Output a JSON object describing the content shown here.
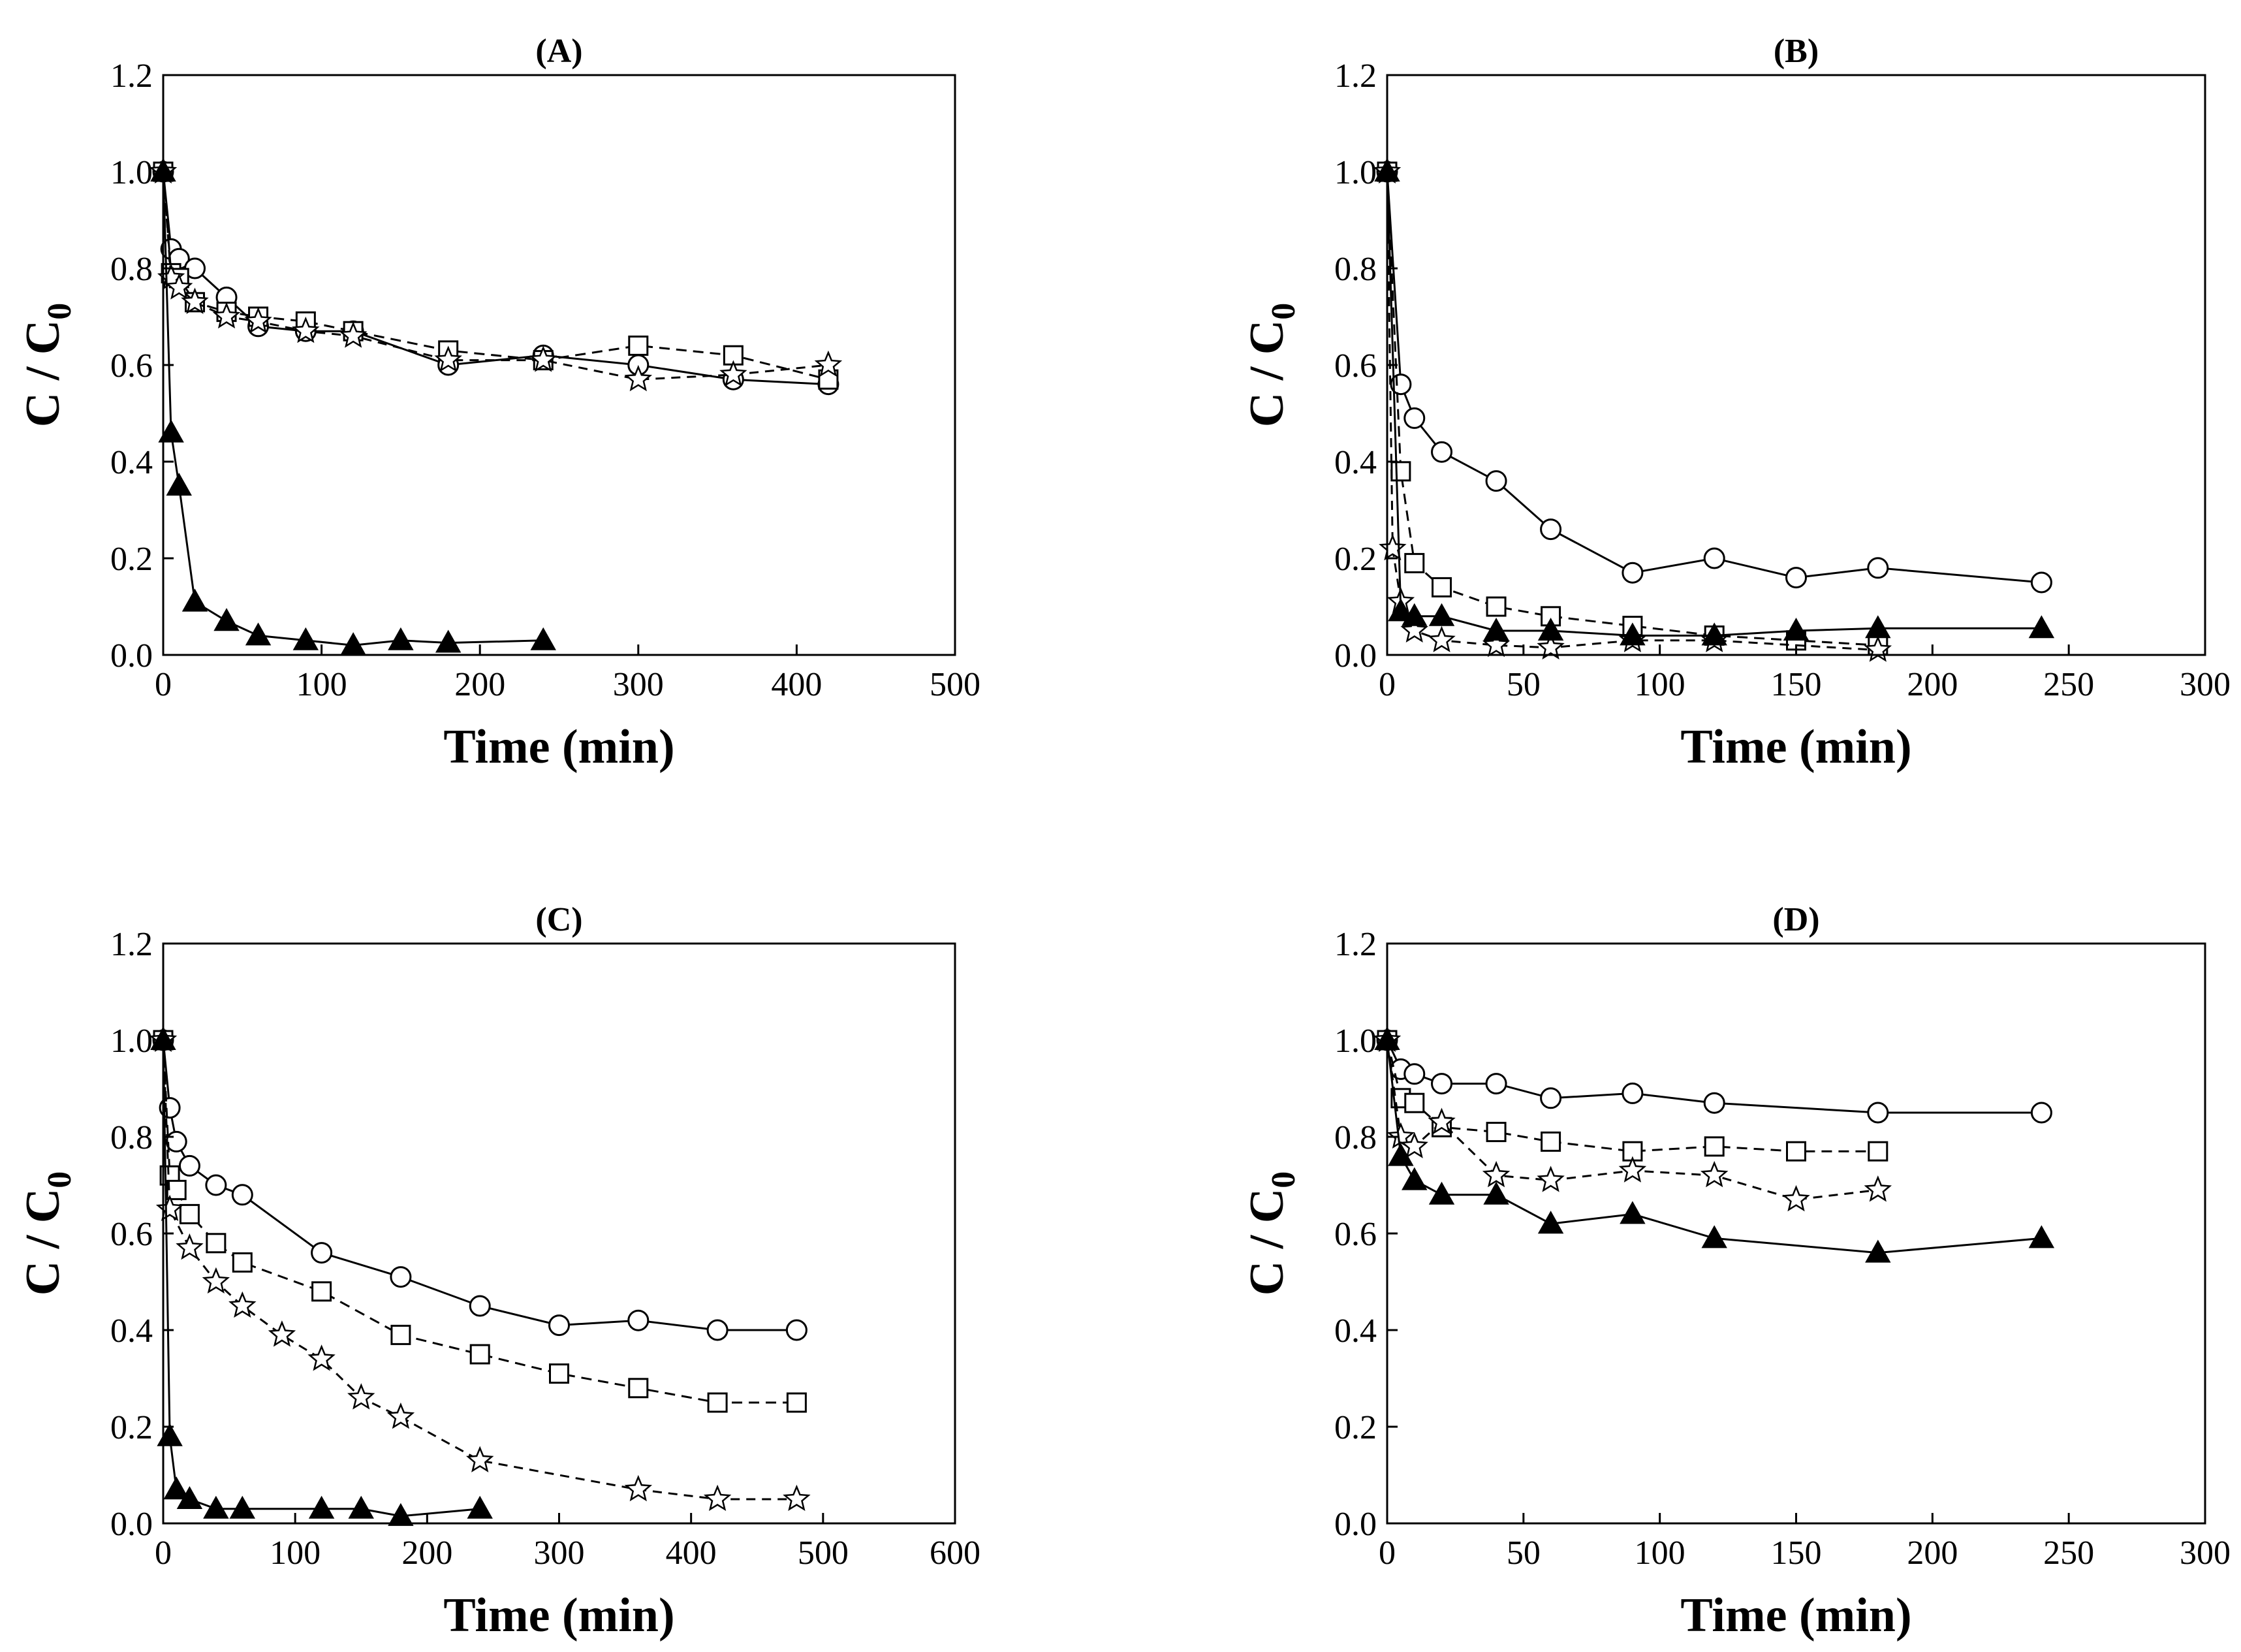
{
  "chart_data": [
    {
      "type": "scatter",
      "title": "(A)",
      "xlabel": "Time (min)",
      "ylabel": "C / C0",
      "ylabel_main": "C / C",
      "ylabel_sub": "0",
      "xlim": [
        0,
        500
      ],
      "ylim": [
        0,
        1.2
      ],
      "xticks": [
        0,
        100,
        200,
        300,
        400,
        500
      ],
      "yticks": [
        0.0,
        0.2,
        0.4,
        0.6,
        0.8,
        1.0,
        1.2
      ],
      "ytick_labels": [
        "0.0",
        "0.2",
        "0.4",
        "0.6",
        "0.8",
        "1.0",
        "1.2"
      ],
      "series": [
        {
          "marker": "circle",
          "x": [
            0,
            5,
            10,
            20,
            40,
            60,
            90,
            120,
            180,
            240,
            300,
            360,
            420
          ],
          "y": [
            1.0,
            0.84,
            0.82,
            0.8,
            0.74,
            0.68,
            0.67,
            0.67,
            0.6,
            0.62,
            0.6,
            0.57,
            0.56
          ]
        },
        {
          "marker": "square",
          "x": [
            0,
            5,
            10,
            20,
            40,
            60,
            90,
            120,
            180,
            240,
            300,
            360,
            420
          ],
          "y": [
            1.0,
            0.79,
            0.78,
            0.73,
            0.71,
            0.7,
            0.69,
            0.67,
            0.63,
            0.61,
            0.64,
            0.62,
            0.57
          ]
        },
        {
          "marker": "star",
          "x": [
            0,
            5,
            10,
            20,
            40,
            60,
            90,
            120,
            180,
            240,
            300,
            360,
            420
          ],
          "y": [
            1.0,
            0.78,
            0.76,
            0.73,
            0.7,
            0.69,
            0.67,
            0.66,
            0.61,
            0.61,
            0.57,
            0.58,
            0.6
          ]
        },
        {
          "marker": "triangle",
          "x": [
            0,
            5,
            10,
            20,
            40,
            60,
            90,
            120,
            150,
            180,
            240
          ],
          "y": [
            1.0,
            0.46,
            0.35,
            0.11,
            0.07,
            0.04,
            0.03,
            0.02,
            0.03,
            0.025,
            0.03
          ]
        }
      ]
    },
    {
      "type": "scatter",
      "title": "(B)",
      "xlabel": "Time (min)",
      "ylabel": "C / C0",
      "ylabel_main": "C / C",
      "ylabel_sub": "0",
      "xlim": [
        0,
        300
      ],
      "ylim": [
        0,
        1.2
      ],
      "xticks": [
        0,
        50,
        100,
        150,
        200,
        250,
        300
      ],
      "yticks": [
        0.0,
        0.2,
        0.4,
        0.6,
        0.8,
        1.0,
        1.2
      ],
      "ytick_labels": [
        "0.0",
        "0.2",
        "0.4",
        "0.6",
        "0.8",
        "1.0",
        "1.2"
      ],
      "series": [
        {
          "marker": "circle",
          "x": [
            0,
            5,
            10,
            20,
            40,
            60,
            90,
            120,
            150,
            180,
            240
          ],
          "y": [
            1.0,
            0.56,
            0.49,
            0.42,
            0.36,
            0.26,
            0.17,
            0.2,
            0.16,
            0.18,
            0.15
          ]
        },
        {
          "marker": "square",
          "x": [
            0,
            5,
            10,
            20,
            40,
            60,
            90,
            120,
            150,
            180
          ],
          "y": [
            1.0,
            0.38,
            0.19,
            0.14,
            0.1,
            0.08,
            0.06,
            0.04,
            0.03,
            0.02
          ]
        },
        {
          "marker": "star",
          "x": [
            0,
            2,
            5,
            10,
            20,
            40,
            60,
            90,
            120,
            180
          ],
          "y": [
            1.0,
            0.22,
            0.11,
            0.05,
            0.03,
            0.02,
            0.015,
            0.03,
            0.03,
            0.01
          ]
        },
        {
          "marker": "triangle",
          "x": [
            0,
            5,
            10,
            20,
            40,
            60,
            90,
            120,
            150,
            180,
            240
          ],
          "y": [
            1.0,
            0.09,
            0.08,
            0.08,
            0.05,
            0.05,
            0.04,
            0.04,
            0.05,
            0.055,
            0.055
          ]
        }
      ]
    },
    {
      "type": "scatter",
      "title": "(C)",
      "xlabel": "Time (min)",
      "ylabel": "C / C0",
      "ylabel_main": "C / C",
      "ylabel_sub": "0",
      "xlim": [
        0,
        600
      ],
      "ylim": [
        0,
        1.2
      ],
      "xticks": [
        0,
        100,
        200,
        300,
        400,
        500,
        600
      ],
      "yticks": [
        0.0,
        0.2,
        0.4,
        0.6,
        0.8,
        1.0,
        1.2
      ],
      "ytick_labels": [
        "0.0",
        "0.2",
        "0.4",
        "0.6",
        "0.8",
        "1.0",
        "1.2"
      ],
      "series": [
        {
          "marker": "circle",
          "x": [
            0,
            5,
            10,
            20,
            40,
            60,
            120,
            180,
            240,
            300,
            360,
            420,
            480
          ],
          "y": [
            1.0,
            0.86,
            0.79,
            0.74,
            0.7,
            0.68,
            0.56,
            0.51,
            0.45,
            0.41,
            0.42,
            0.4,
            0.4
          ]
        },
        {
          "marker": "square",
          "x": [
            0,
            5,
            10,
            20,
            40,
            60,
            120,
            180,
            240,
            300,
            360,
            420,
            480
          ],
          "y": [
            1.0,
            0.72,
            0.69,
            0.64,
            0.58,
            0.54,
            0.48,
            0.39,
            0.35,
            0.31,
            0.28,
            0.25,
            0.25
          ]
        },
        {
          "marker": "star",
          "x": [
            0,
            5,
            20,
            40,
            60,
            90,
            120,
            150,
            180,
            240,
            360,
            420,
            480
          ],
          "y": [
            1.0,
            0.65,
            0.57,
            0.5,
            0.45,
            0.39,
            0.34,
            0.26,
            0.22,
            0.13,
            0.07,
            0.05,
            0.05
          ]
        },
        {
          "marker": "triangle",
          "x": [
            0,
            5,
            10,
            20,
            40,
            60,
            120,
            150,
            180,
            240
          ],
          "y": [
            1.0,
            0.18,
            0.07,
            0.05,
            0.03,
            0.03,
            0.03,
            0.03,
            0.015,
            0.03
          ]
        }
      ]
    },
    {
      "type": "scatter",
      "title": "(D)",
      "xlabel": "Time (min)",
      "ylabel": "C / C0",
      "ylabel_main": "C / C",
      "ylabel_sub": "0",
      "xlim": [
        0,
        300
      ],
      "ylim": [
        0,
        1.2
      ],
      "xticks": [
        0,
        50,
        100,
        150,
        200,
        250,
        300
      ],
      "yticks": [
        0.0,
        0.2,
        0.4,
        0.6,
        0.8,
        1.0,
        1.2
      ],
      "ytick_labels": [
        "0.0",
        "0.2",
        "0.4",
        "0.6",
        "0.8",
        "1.0",
        "1.2"
      ],
      "series": [
        {
          "marker": "circle",
          "x": [
            0,
            5,
            10,
            20,
            40,
            60,
            90,
            120,
            180,
            240
          ],
          "y": [
            1.0,
            0.94,
            0.93,
            0.91,
            0.91,
            0.88,
            0.89,
            0.87,
            0.85,
            0.85
          ]
        },
        {
          "marker": "square",
          "x": [
            0,
            5,
            10,
            20,
            40,
            60,
            90,
            120,
            150,
            180
          ],
          "y": [
            1.0,
            0.88,
            0.87,
            0.82,
            0.81,
            0.79,
            0.77,
            0.78,
            0.77,
            0.77
          ]
        },
        {
          "marker": "star",
          "x": [
            0,
            5,
            10,
            20,
            40,
            60,
            90,
            120,
            150,
            180
          ],
          "y": [
            1.0,
            0.8,
            0.78,
            0.83,
            0.72,
            0.71,
            0.73,
            0.72,
            0.67,
            0.69
          ]
        },
        {
          "marker": "triangle",
          "x": [
            0,
            5,
            10,
            20,
            40,
            60,
            90,
            120,
            180,
            240
          ],
          "y": [
            1.0,
            0.76,
            0.71,
            0.68,
            0.68,
            0.62,
            0.64,
            0.59,
            0.56,
            0.59
          ]
        }
      ]
    }
  ]
}
